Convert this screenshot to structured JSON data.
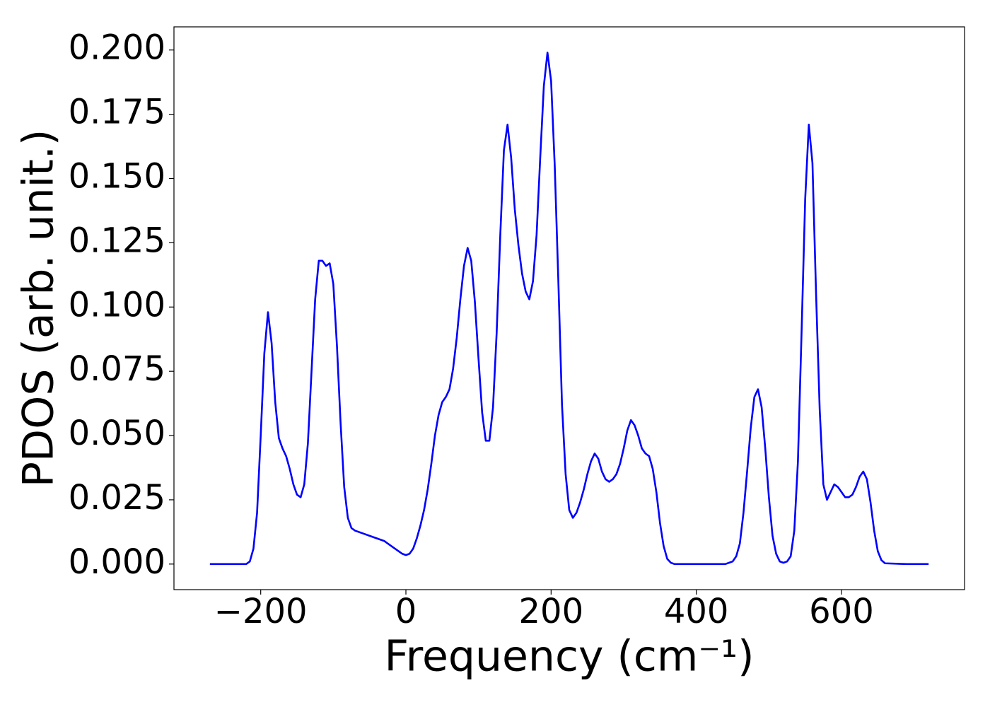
{
  "chart_data": {
    "type": "line",
    "x_label": "Frequency (cm⁻¹)",
    "y_label": "PDOS (arb. unit.)",
    "xlim": [
      -319.5,
      769.5
    ],
    "ylim": [
      -0.00995,
      0.209
    ],
    "xticks": [
      {
        "value": -200,
        "label": "−200"
      },
      0,
      200,
      400,
      600
    ],
    "yticks": [
      {
        "value": 0,
        "label": "0.000"
      },
      {
        "value": 0.025,
        "label": "0.025"
      },
      {
        "value": 0.05,
        "label": "0.050"
      },
      {
        "value": 0.075,
        "label": "0.075"
      },
      {
        "value": 0.1,
        "label": "0.100"
      },
      {
        "value": 0.125,
        "label": "0.125"
      },
      {
        "value": 0.15,
        "label": "0.150"
      },
      {
        "value": 0.175,
        "label": "0.175"
      },
      {
        "value": 0.2,
        "label": "0.200"
      }
    ],
    "x": [
      -270,
      -250,
      -230,
      -220,
      -215,
      -210,
      -205,
      -200,
      -195,
      -190,
      -185,
      -180,
      -175,
      -170,
      -165,
      -160,
      -155,
      -150,
      -145,
      -140,
      -135,
      -130,
      -125,
      -120,
      -115,
      -110,
      -105,
      -100,
      -95,
      -90,
      -85,
      -80,
      -75,
      -70,
      -60,
      -50,
      -40,
      -30,
      -20,
      -10,
      -5,
      0,
      5,
      10,
      15,
      20,
      25,
      30,
      35,
      40,
      45,
      50,
      55,
      60,
      65,
      70,
      75,
      80,
      85,
      90,
      95,
      100,
      105,
      110,
      115,
      120,
      125,
      130,
      135,
      140,
      145,
      150,
      155,
      160,
      165,
      170,
      175,
      180,
      185,
      190,
      195,
      200,
      205,
      210,
      215,
      220,
      225,
      230,
      235,
      240,
      245,
      250,
      255,
      260,
      265,
      270,
      275,
      280,
      285,
      290,
      295,
      300,
      305,
      310,
      315,
      320,
      325,
      330,
      335,
      340,
      345,
      350,
      355,
      360,
      365,
      370,
      400,
      440,
      445,
      450,
      455,
      460,
      465,
      470,
      475,
      480,
      485,
      490,
      495,
      500,
      505,
      510,
      515,
      520,
      525,
      530,
      535,
      540,
      545,
      550,
      555,
      560,
      565,
      570,
      575,
      580,
      585,
      590,
      595,
      600,
      605,
      610,
      615,
      620,
      625,
      630,
      635,
      640,
      645,
      650,
      655,
      660,
      690,
      720
    ],
    "series": [
      {
        "color": "#0000ff",
        "values": [
          0,
          0,
          0,
          0,
          0.001,
          0.006,
          0.02,
          0.05,
          0.082,
          0.098,
          0.086,
          0.063,
          0.049,
          0.045,
          0.042,
          0.037,
          0.031,
          0.027,
          0.026,
          0.031,
          0.047,
          0.075,
          0.103,
          0.118,
          0.118,
          0.116,
          0.117,
          0.109,
          0.085,
          0.055,
          0.03,
          0.018,
          0.014,
          0.013,
          0.012,
          0.011,
          0.01,
          0.009,
          0.007,
          0.005,
          0.004,
          0.0035,
          0.004,
          0.006,
          0.01,
          0.015,
          0.021,
          0.029,
          0.039,
          0.05,
          0.058,
          0.063,
          0.065,
          0.068,
          0.076,
          0.088,
          0.103,
          0.116,
          0.123,
          0.118,
          0.102,
          0.08,
          0.059,
          0.048,
          0.048,
          0.061,
          0.09,
          0.128,
          0.161,
          0.171,
          0.158,
          0.138,
          0.124,
          0.113,
          0.106,
          0.103,
          0.11,
          0.128,
          0.158,
          0.186,
          0.199,
          0.188,
          0.155,
          0.11,
          0.062,
          0.035,
          0.021,
          0.018,
          0.02,
          0.024,
          0.029,
          0.035,
          0.04,
          0.043,
          0.041,
          0.036,
          0.033,
          0.032,
          0.033,
          0.035,
          0.039,
          0.045,
          0.052,
          0.056,
          0.054,
          0.05,
          0.045,
          0.043,
          0.042,
          0.037,
          0.028,
          0.016,
          0.007,
          0.002,
          0.0005,
          0,
          0,
          0,
          0.0005,
          0.001,
          0.003,
          0.008,
          0.02,
          0.036,
          0.053,
          0.065,
          0.068,
          0.061,
          0.045,
          0.026,
          0.011,
          0.004,
          0.001,
          0.0005,
          0.001,
          0.003,
          0.013,
          0.04,
          0.09,
          0.142,
          0.171,
          0.156,
          0.105,
          0.06,
          0.031,
          0.025,
          0.028,
          0.031,
          0.03,
          0.028,
          0.026,
          0.026,
          0.027,
          0.03,
          0.034,
          0.036,
          0.033,
          0.024,
          0.013,
          0.005,
          0.0015,
          0.0003,
          0,
          0
        ]
      }
    ]
  }
}
